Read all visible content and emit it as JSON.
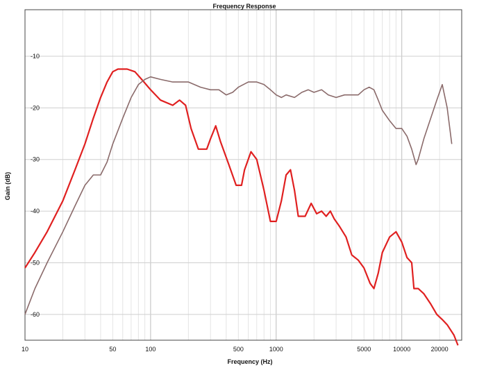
{
  "chart_data": {
    "type": "line",
    "title": "Frequency Response",
    "xlabel": "Frequency (Hz)",
    "ylabel": "Gain (dB)",
    "x_scale": "log",
    "xlim": [
      10,
      30000
    ],
    "ylim": [
      -65,
      -1
    ],
    "grid": true,
    "x_ticks": [
      {
        "value": 10,
        "label": "10"
      },
      {
        "value": 50,
        "label": "50"
      },
      {
        "value": 100,
        "label": "100"
      },
      {
        "value": 500,
        "label": "500"
      },
      {
        "value": 1000,
        "label": "1000"
      },
      {
        "value": 5000,
        "label": "5000"
      },
      {
        "value": 10000,
        "label": "10000"
      },
      {
        "value": 20000,
        "label": "20000"
      }
    ],
    "y_ticks": [
      {
        "value": -10,
        "label": "-10"
      },
      {
        "value": -20,
        "label": "-20"
      },
      {
        "value": -30,
        "label": "-30"
      },
      {
        "value": -40,
        "label": "-40"
      },
      {
        "value": -50,
        "label": "-50"
      },
      {
        "value": -60,
        "label": "-60"
      }
    ],
    "series": [
      {
        "color": "#e02020",
        "points": [
          [
            10,
            -51
          ],
          [
            12,
            -48
          ],
          [
            15,
            -44
          ],
          [
            20,
            -38
          ],
          [
            25,
            -32
          ],
          [
            30,
            -27
          ],
          [
            35,
            -22
          ],
          [
            40,
            -18
          ],
          [
            45,
            -15
          ],
          [
            50,
            -13
          ],
          [
            55,
            -12.5
          ],
          [
            65,
            -12.5
          ],
          [
            75,
            -13
          ],
          [
            85,
            -14.5
          ],
          [
            100,
            -16.5
          ],
          [
            120,
            -18.5
          ],
          [
            150,
            -19.5
          ],
          [
            170,
            -18.5
          ],
          [
            190,
            -19.5
          ],
          [
            210,
            -24
          ],
          [
            240,
            -28
          ],
          [
            280,
            -28
          ],
          [
            300,
            -26
          ],
          [
            330,
            -23.5
          ],
          [
            360,
            -26.5
          ],
          [
            420,
            -31
          ],
          [
            480,
            -35
          ],
          [
            530,
            -35
          ],
          [
            560,
            -32
          ],
          [
            630,
            -28.5
          ],
          [
            700,
            -30
          ],
          [
            800,
            -36
          ],
          [
            900,
            -42
          ],
          [
            1000,
            -42
          ],
          [
            1100,
            -38
          ],
          [
            1200,
            -33
          ],
          [
            1300,
            -32
          ],
          [
            1400,
            -36
          ],
          [
            1500,
            -41
          ],
          [
            1700,
            -41
          ],
          [
            1900,
            -38.5
          ],
          [
            2100,
            -40.5
          ],
          [
            2300,
            -40
          ],
          [
            2500,
            -41
          ],
          [
            2700,
            -40
          ],
          [
            2900,
            -41.5
          ],
          [
            3200,
            -43
          ],
          [
            3600,
            -45
          ],
          [
            4000,
            -48.5
          ],
          [
            4500,
            -49.5
          ],
          [
            5000,
            -51
          ],
          [
            5600,
            -54
          ],
          [
            6000,
            -55
          ],
          [
            6500,
            -52
          ],
          [
            7000,
            -48
          ],
          [
            8000,
            -45
          ],
          [
            9000,
            -44
          ],
          [
            10000,
            -46
          ],
          [
            11000,
            -49
          ],
          [
            12000,
            -50
          ],
          [
            12500,
            -55
          ],
          [
            13500,
            -55
          ],
          [
            15000,
            -56
          ],
          [
            17000,
            -58
          ],
          [
            19000,
            -60
          ],
          [
            21000,
            -61
          ],
          [
            23000,
            -62
          ],
          [
            26000,
            -64
          ],
          [
            28000,
            -66
          ]
        ]
      },
      {
        "color": "#8a6a6a",
        "points": [
          [
            10,
            -60
          ],
          [
            12,
            -55
          ],
          [
            15,
            -50
          ],
          [
            20,
            -44
          ],
          [
            25,
            -39
          ],
          [
            30,
            -35
          ],
          [
            35,
            -33
          ],
          [
            40,
            -33
          ],
          [
            45,
            -30.5
          ],
          [
            50,
            -27
          ],
          [
            60,
            -22
          ],
          [
            70,
            -18
          ],
          [
            80,
            -15.5
          ],
          [
            90,
            -14.5
          ],
          [
            100,
            -14
          ],
          [
            120,
            -14.5
          ],
          [
            150,
            -15
          ],
          [
            200,
            -15
          ],
          [
            250,
            -16
          ],
          [
            300,
            -16.5
          ],
          [
            350,
            -16.5
          ],
          [
            400,
            -17.5
          ],
          [
            450,
            -17
          ],
          [
            500,
            -16
          ],
          [
            600,
            -15
          ],
          [
            700,
            -15
          ],
          [
            800,
            -15.5
          ],
          [
            900,
            -16.5
          ],
          [
            1000,
            -17.5
          ],
          [
            1100,
            -18
          ],
          [
            1200,
            -17.5
          ],
          [
            1400,
            -18
          ],
          [
            1600,
            -17
          ],
          [
            1800,
            -16.5
          ],
          [
            2000,
            -17
          ],
          [
            2300,
            -16.5
          ],
          [
            2600,
            -17.5
          ],
          [
            3000,
            -18
          ],
          [
            3500,
            -17.5
          ],
          [
            4000,
            -17.5
          ],
          [
            4500,
            -17.5
          ],
          [
            5000,
            -16.5
          ],
          [
            5500,
            -16
          ],
          [
            6000,
            -16.5
          ],
          [
            6500,
            -18.5
          ],
          [
            7000,
            -20.5
          ],
          [
            8000,
            -22.5
          ],
          [
            9000,
            -24
          ],
          [
            10000,
            -24
          ],
          [
            11000,
            -25.5
          ],
          [
            12000,
            -28
          ],
          [
            13000,
            -31
          ],
          [
            13500,
            -30
          ],
          [
            15000,
            -26
          ],
          [
            17000,
            -22
          ],
          [
            19000,
            -18.5
          ],
          [
            21000,
            -15.5
          ],
          [
            23000,
            -20
          ],
          [
            25000,
            -27
          ]
        ]
      }
    ]
  }
}
